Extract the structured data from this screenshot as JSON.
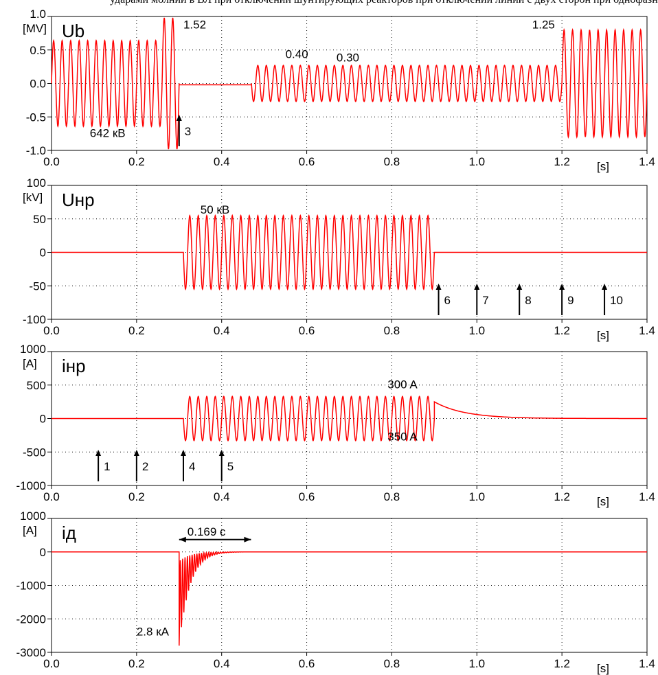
{
  "caption": "ударами молнии в ВЛ при отключении шунтирующих реакторов при отключении линии с двух сторон при однофазном КЗ",
  "chart_data": [
    {
      "type": "line",
      "title": "Ub",
      "unit": "[MV]",
      "xlabel": "[s]",
      "xlim": [
        0,
        1.4
      ],
      "ylim": [
        -1.0,
        1.0
      ],
      "xticks": [
        "0.0",
        "0.2",
        "0.4",
        "0.6",
        "0.8",
        "1.0",
        "1.2",
        "1.4"
      ],
      "yticks": [
        "1.0",
        "0.5",
        "0.0",
        "-0.5",
        "-1.0"
      ],
      "grid": true,
      "series": [
        {
          "color": "#ff0000",
          "segments": [
            {
              "type": "sine",
              "t0": 0.0,
              "t1": 0.26,
              "amp": 0.64,
              "freq": 50
            },
            {
              "type": "sine",
              "t0": 0.26,
              "t1": 0.3,
              "amp": 0.98,
              "freq": 50
            },
            {
              "type": "flat",
              "t0": 0.3,
              "t1": 0.47,
              "value": -0.02
            },
            {
              "type": "sine",
              "t0": 0.47,
              "t1": 1.2,
              "amp": 0.27,
              "freq": 50
            },
            {
              "type": "sine",
              "t0": 1.2,
              "t1": 1.4,
              "amp": 0.8,
              "freq": 50
            }
          ]
        }
      ],
      "annotations": [
        {
          "text": "642 кВ",
          "x": 0.09,
          "y": -0.8
        },
        {
          "text": "1.52",
          "x": 0.31,
          "y": 0.82
        },
        {
          "text": "0.40",
          "x": 0.55,
          "y": 0.38
        },
        {
          "text": "0.30",
          "x": 0.67,
          "y": 0.33
        },
        {
          "text": "1.25",
          "x": 1.13,
          "y": 0.82
        }
      ],
      "arrows": [
        {
          "label": "3",
          "x": 0.3
        }
      ]
    },
    {
      "type": "line",
      "title": "Uнр",
      "unit": "[kV]",
      "xlabel": "[s]",
      "xlim": [
        0,
        1.4
      ],
      "ylim": [
        -100,
        100
      ],
      "xticks": [
        "0.0",
        "0.2",
        "0.4",
        "0.6",
        "0.8",
        "1.0",
        "1.2",
        "1.4"
      ],
      "yticks": [
        "100",
        "50",
        "0",
        "-50",
        "-100"
      ],
      "grid": true,
      "series": [
        {
          "color": "#ff0000",
          "segments": [
            {
              "type": "flat",
              "t0": 0.0,
              "t1": 0.31,
              "value": 0
            },
            {
              "type": "sine",
              "t0": 0.31,
              "t1": 0.9,
              "amp": 55,
              "freq": 50
            },
            {
              "type": "flat",
              "t0": 0.9,
              "t1": 1.4,
              "value": 0
            }
          ]
        }
      ],
      "annotations": [
        {
          "text": "50 кВ",
          "x": 0.35,
          "y": 58
        }
      ],
      "arrows": [
        {
          "label": "6",
          "x": 0.91
        },
        {
          "label": "7",
          "x": 1.0
        },
        {
          "label": "8",
          "x": 1.1
        },
        {
          "label": "9",
          "x": 1.2
        },
        {
          "label": "10",
          "x": 1.3
        }
      ]
    },
    {
      "type": "line",
      "title": "iнр",
      "unit": "[A]",
      "xlabel": "[s]",
      "xlim": [
        0,
        1.4
      ],
      "ylim": [
        -1000,
        1000
      ],
      "xticks": [
        "0.0",
        "0.2",
        "0.4",
        "0.6",
        "0.8",
        "1.0",
        "1.2",
        "1.4"
      ],
      "yticks": [
        "1000",
        "500",
        "0",
        "-500",
        "-1000"
      ],
      "grid": true,
      "series": [
        {
          "color": "#ff0000",
          "segments": [
            {
              "type": "flat",
              "t0": 0.0,
              "t1": 0.31,
              "value": 0
            },
            {
              "type": "sine",
              "t0": 0.31,
              "t1": 0.9,
              "amp": 330,
              "freq": 50
            },
            {
              "type": "decay",
              "t0": 0.9,
              "t1": 1.4,
              "value": 250
            }
          ]
        }
      ],
      "annotations": [
        {
          "text": "300 A",
          "x": 0.79,
          "y": 450
        },
        {
          "text": "350 A",
          "x": 0.79,
          "y": -330
        }
      ],
      "arrows": [
        {
          "label": "1",
          "x": 0.11
        },
        {
          "label": "2",
          "x": 0.2
        },
        {
          "label": "4",
          "x": 0.31
        },
        {
          "label": "5",
          "x": 0.4
        }
      ]
    },
    {
      "type": "line",
      "title": "iд",
      "unit": "[A]",
      "xlabel": "[s]",
      "xlim": [
        0,
        1.4
      ],
      "ylim": [
        -3000,
        1000
      ],
      "xticks": [
        "0.0",
        "0.2",
        "0.4",
        "0.6",
        "0.8",
        "1.0",
        "1.2",
        "1.4"
      ],
      "yticks": [
        "1000",
        "0",
        "-1000",
        "-2000",
        "-3000"
      ],
      "grid": true,
      "series": [
        {
          "color": "#ff0000",
          "segments": [
            {
              "type": "flat",
              "t0": 0.0,
              "t1": 0.3,
              "value": 0
            },
            {
              "type": "fault",
              "t0": 0.3,
              "t1": 0.469,
              "peak": -2800
            },
            {
              "type": "flat",
              "t0": 0.469,
              "t1": 1.4,
              "value": 0
            }
          ]
        }
      ],
      "annotations": [
        {
          "text": "2.8 кА",
          "x": 0.2,
          "y": -2500
        }
      ],
      "span": {
        "text": "0.169 с",
        "x0": 0.3,
        "x1": 0.469,
        "y": 400
      }
    }
  ]
}
